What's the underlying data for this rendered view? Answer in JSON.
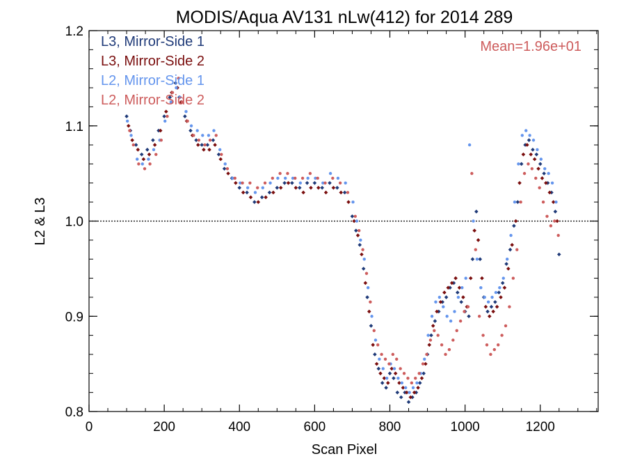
{
  "chart_data": {
    "type": "scatter",
    "title": "MODIS/Aqua AV131 nLw(412) for 2014 289",
    "xlabel": "Scan Pixel",
    "ylabel": "L2 & L3",
    "xlim": [
      0,
      1354
    ],
    "ylim": [
      0.8,
      1.2
    ],
    "x_ticks": [
      0,
      200,
      400,
      600,
      800,
      1000,
      1200
    ],
    "x_tick_labels": [
      "0",
      "200",
      "400",
      "600",
      "800",
      "1000",
      "1200"
    ],
    "y_ticks": [
      0.8,
      0.9,
      1.0,
      1.1,
      1.2
    ],
    "y_tick_labels": [
      "0.8",
      "0.9",
      "1.0",
      "1.1",
      "1.2"
    ],
    "reference_line": 1.0,
    "annotation": "Mean=1.96e+01",
    "grid": false,
    "legend_position": "top-left",
    "series": [
      {
        "name": "L3, Mirror-Side 1",
        "color": "#1f3a78",
        "marker": "diamond",
        "x": [
          100,
          110,
          125,
          140,
          155,
          170,
          185,
          200,
          215,
          230,
          240,
          255,
          270,
          285,
          300,
          315,
          330,
          345,
          360,
          380,
          400,
          420,
          440,
          460,
          480,
          500,
          520,
          540,
          560,
          580,
          600,
          620,
          640,
          660,
          680,
          700,
          710,
          720,
          730,
          740,
          750,
          760,
          770,
          780,
          790,
          800,
          810,
          820,
          830,
          840,
          850,
          860,
          870,
          880,
          890,
          900,
          910,
          920,
          930,
          940,
          950,
          960,
          970,
          980,
          990,
          1000,
          1010,
          1020,
          1030,
          1040,
          1050,
          1060,
          1070,
          1080,
          1090,
          1100,
          1110,
          1120,
          1130,
          1140,
          1150,
          1160,
          1170,
          1180,
          1190,
          1200,
          1210,
          1220,
          1230,
          1240,
          1250
        ],
        "y": [
          1.11,
          1.095,
          1.08,
          1.07,
          1.075,
          1.085,
          1.095,
          1.11,
          1.13,
          1.145,
          1.13,
          1.11,
          1.095,
          1.085,
          1.08,
          1.08,
          1.085,
          1.07,
          1.055,
          1.045,
          1.035,
          1.03,
          1.02,
          1.025,
          1.03,
          1.035,
          1.04,
          1.04,
          1.035,
          1.04,
          1.04,
          1.035,
          1.04,
          1.035,
          1.03,
          1.005,
          0.99,
          0.975,
          0.95,
          0.92,
          0.89,
          0.86,
          0.845,
          0.83,
          0.825,
          0.84,
          0.835,
          0.82,
          0.815,
          0.82,
          0.81,
          0.815,
          0.82,
          0.83,
          0.84,
          0.86,
          0.88,
          0.895,
          0.905,
          0.915,
          0.92,
          0.93,
          0.935,
          0.925,
          0.915,
          0.905,
          0.9,
          0.96,
          1.01,
          0.96,
          0.92,
          0.905,
          0.91,
          0.915,
          0.925,
          0.935,
          0.955,
          0.97,
          0.995,
          1.02,
          1.06,
          1.08,
          1.085,
          1.075,
          1.07,
          1.06,
          1.05,
          1.04,
          1.03,
          1.01,
          0.965
        ]
      },
      {
        "name": "L3, Mirror-Side 2",
        "color": "#7a0e0e",
        "marker": "diamond",
        "x": [
          105,
          115,
          130,
          145,
          160,
          175,
          190,
          205,
          220,
          235,
          245,
          260,
          275,
          290,
          305,
          320,
          335,
          350,
          370,
          390,
          410,
          430,
          450,
          470,
          490,
          510,
          530,
          550,
          570,
          590,
          610,
          630,
          650,
          670,
          690,
          705,
          715,
          725,
          735,
          745,
          755,
          765,
          775,
          785,
          795,
          805,
          815,
          825,
          835,
          845,
          855,
          865,
          875,
          885,
          895,
          905,
          915,
          925,
          935,
          945,
          955,
          965,
          975,
          985,
          995,
          1005,
          1015,
          1025,
          1035,
          1045,
          1055,
          1065,
          1075,
          1085,
          1095,
          1105,
          1115,
          1125,
          1135,
          1145,
          1155,
          1165,
          1175,
          1185,
          1195,
          1205,
          1215,
          1225,
          1235,
          1245
        ],
        "y": [
          1.1,
          1.085,
          1.075,
          1.065,
          1.07,
          1.08,
          1.095,
          1.115,
          1.135,
          1.14,
          1.125,
          1.105,
          1.09,
          1.08,
          1.075,
          1.075,
          1.08,
          1.065,
          1.05,
          1.04,
          1.03,
          1.025,
          1.02,
          1.025,
          1.03,
          1.035,
          1.04,
          1.035,
          1.03,
          1.035,
          1.035,
          1.03,
          1.035,
          1.03,
          1.02,
          1.0,
          0.985,
          0.965,
          0.935,
          0.905,
          0.87,
          0.85,
          0.84,
          0.835,
          0.83,
          0.845,
          0.84,
          0.83,
          0.825,
          0.82,
          0.815,
          0.82,
          0.825,
          0.835,
          0.85,
          0.87,
          0.89,
          0.905,
          0.915,
          0.925,
          0.93,
          0.935,
          0.94,
          0.93,
          0.92,
          0.91,
          0.94,
          0.99,
          0.98,
          0.94,
          0.91,
          0.9,
          0.905,
          0.91,
          0.92,
          0.93,
          0.95,
          0.975,
          1.0,
          1.04,
          1.07,
          1.08,
          1.07,
          1.065,
          1.055,
          1.045,
          1.04,
          1.03,
          1.02,
          1.0
        ]
      },
      {
        "name": "L2, Mirror-Side 1",
        "color": "#6495ed",
        "marker": "dot",
        "x": [
          102,
          112,
          128,
          142,
          158,
          172,
          188,
          202,
          218,
          232,
          242,
          258,
          272,
          288,
          302,
          318,
          332,
          348,
          362,
          382,
          402,
          422,
          442,
          462,
          482,
          502,
          522,
          542,
          562,
          582,
          602,
          622,
          642,
          662,
          682,
          702,
          712,
          722,
          732,
          742,
          752,
          762,
          772,
          782,
          792,
          802,
          812,
          822,
          832,
          842,
          852,
          862,
          872,
          882,
          892,
          902,
          912,
          922,
          932,
          942,
          952,
          962,
          972,
          982,
          992,
          1002,
          1012,
          1022,
          1032,
          1042,
          1052,
          1062,
          1072,
          1082,
          1092,
          1102,
          1112,
          1122,
          1132,
          1142,
          1152,
          1162,
          1172,
          1182,
          1192,
          1202,
          1212,
          1222,
          1232,
          1242
        ],
        "y": [
          1.105,
          1.09,
          1.065,
          1.06,
          1.065,
          1.075,
          1.085,
          1.105,
          1.125,
          1.14,
          1.13,
          1.115,
          1.1,
          1.095,
          1.09,
          1.09,
          1.095,
          1.075,
          1.06,
          1.045,
          1.04,
          1.035,
          1.03,
          1.035,
          1.04,
          1.045,
          1.045,
          1.045,
          1.04,
          1.045,
          1.045,
          1.04,
          1.05,
          1.045,
          1.04,
          1.02,
          1.0,
          0.98,
          0.96,
          0.93,
          0.9,
          0.875,
          0.855,
          0.845,
          0.835,
          0.85,
          0.845,
          0.835,
          0.83,
          0.825,
          0.82,
          0.825,
          0.83,
          0.84,
          0.855,
          0.88,
          0.9,
          0.915,
          0.92,
          0.91,
          0.9,
          0.895,
          0.905,
          0.92,
          0.93,
          0.94,
          1.08,
          1.0,
          0.96,
          0.93,
          0.92,
          0.915,
          0.92,
          0.925,
          0.93,
          0.94,
          0.96,
          0.985,
          1.02,
          1.06,
          1.09,
          1.095,
          1.09,
          1.085,
          1.075,
          1.065,
          1.055,
          1.05,
          1.04,
          1.02
        ]
      },
      {
        "name": "L2, Mirror-Side 2",
        "color": "#cd5c5c",
        "marker": "dot",
        "x": [
          108,
          118,
          132,
          148,
          162,
          178,
          192,
          208,
          222,
          238,
          248,
          262,
          278,
          292,
          308,
          322,
          338,
          352,
          368,
          388,
          408,
          428,
          448,
          468,
          488,
          508,
          528,
          548,
          568,
          588,
          608,
          628,
          648,
          668,
          688,
          708,
          718,
          728,
          738,
          748,
          758,
          768,
          778,
          788,
          798,
          808,
          818,
          828,
          838,
          848,
          858,
          868,
          878,
          888,
          898,
          908,
          918,
          928,
          938,
          948,
          958,
          968,
          978,
          988,
          998,
          1008,
          1018,
          1028,
          1038,
          1048,
          1058,
          1068,
          1078,
          1088,
          1098,
          1108,
          1118,
          1128,
          1138,
          1148,
          1158,
          1168,
          1178,
          1188,
          1198,
          1208,
          1218,
          1228,
          1238,
          1248
        ],
        "y": [
          1.095,
          1.08,
          1.06,
          1.055,
          1.06,
          1.07,
          1.085,
          1.11,
          1.135,
          1.15,
          1.125,
          1.105,
          1.09,
          1.085,
          1.08,
          1.085,
          1.09,
          1.07,
          1.055,
          1.045,
          1.04,
          1.04,
          1.035,
          1.04,
          1.045,
          1.05,
          1.05,
          1.045,
          1.045,
          1.05,
          1.045,
          1.04,
          1.045,
          1.04,
          1.03,
          1.005,
          0.99,
          0.97,
          0.945,
          0.915,
          0.885,
          0.87,
          0.86,
          0.855,
          0.85,
          0.86,
          0.855,
          0.845,
          0.84,
          0.835,
          0.83,
          0.835,
          0.84,
          0.85,
          0.86,
          0.875,
          0.885,
          0.88,
          0.87,
          0.86,
          0.865,
          0.875,
          0.885,
          0.895,
          0.905,
          0.91,
          1.05,
          0.97,
          0.9,
          0.88,
          0.87,
          0.86,
          0.865,
          0.87,
          0.88,
          0.89,
          0.91,
          0.94,
          0.97,
          1.02,
          1.05,
          1.06,
          1.055,
          1.045,
          1.035,
          1.02,
          1.005,
          0.995,
          1.0,
          0.985
        ]
      }
    ]
  }
}
